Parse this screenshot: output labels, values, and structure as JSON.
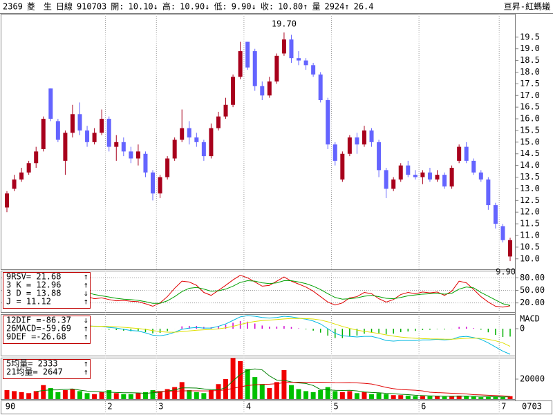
{
  "header": {
    "items": [
      {
        "text": "2369",
        "color": "#808080"
      },
      {
        "text": "菱　生",
        "color": "#c000c0"
      },
      {
        "text": "日線",
        "color": "#00a000"
      },
      {
        "text": "910703",
        "color": "#0000c0"
      },
      {
        "text": "開:",
        "color": "#c000c0"
      },
      {
        "text": "10.10",
        "color": "#c000c0"
      },
      {
        "text": "↓",
        "color": "#008000"
      },
      {
        "text": "高:",
        "color": "#c000c0"
      },
      {
        "text": "10.90",
        "color": "#c000c0"
      },
      {
        "text": "↓",
        "color": "#008000"
      },
      {
        "text": "低:",
        "color": "#c000c0"
      },
      {
        "text": "9.90",
        "color": "#c000c0"
      },
      {
        "text": "↓",
        "color": "#008000"
      },
      {
        "text": "收:",
        "color": "#c000c0"
      },
      {
        "text": "10.80",
        "color": "#c000c0"
      },
      {
        "text": "↑",
        "color": "#e00000"
      },
      {
        "text": "量",
        "color": "#c000c0"
      },
      {
        "text": "2924",
        "color": "#c00000"
      },
      {
        "text": "↑",
        "color": "#e00000"
      },
      {
        "text": "26.4",
        "color": "#00b0b0"
      }
    ],
    "right": {
      "text": "亘昇-紅螞蟻",
      "color": "#c00000"
    }
  },
  "chart_data": [
    {
      "type": "candlestick",
      "up_color": "#a8001c",
      "down_color": "#6464ff",
      "open": [
        12.2,
        13.0,
        13.4,
        13.7,
        14.1,
        14.7,
        17.3,
        15.9,
        14.2,
        15.4,
        16.2,
        15.5,
        15.0,
        15.4,
        16.0,
        14.8,
        15.0,
        14.6,
        14.3,
        14.5,
        13.7,
        12.8,
        13.5,
        14.3,
        15.1,
        15.6,
        15.2,
        15.0,
        14.4,
        15.6,
        16.1,
        16.6,
        17.8,
        19.3,
        18.9,
        17.4,
        17.0,
        17.6,
        18.8,
        19.4,
        18.6,
        18.5,
        18.3,
        17.9,
        16.8,
        14.9,
        13.4,
        14.5,
        15.2,
        14.9,
        15.5,
        15.0,
        13.8,
        13.0,
        13.4,
        14.0,
        13.6,
        13.5,
        13.7,
        13.4,
        13.6,
        13.1,
        14.2,
        14.8,
        14.2,
        13.7,
        13.4,
        12.3,
        11.4,
        10.1
      ],
      "high": [
        12.9,
        13.6,
        13.9,
        14.2,
        14.8,
        16.1,
        17.3,
        16.0,
        15.5,
        16.6,
        16.7,
        15.7,
        15.6,
        16.4,
        16.1,
        15.3,
        15.2,
        14.8,
        14.9,
        14.6,
        13.8,
        13.6,
        14.4,
        15.2,
        16.4,
        15.9,
        15.4,
        15.1,
        15.8,
        16.3,
        16.9,
        17.9,
        19.3,
        19.3,
        19.0,
        17.6,
        17.8,
        18.8,
        19.7,
        19.6,
        18.9,
        18.6,
        18.4,
        18.0,
        16.9,
        15.0,
        14.6,
        15.3,
        15.4,
        15.7,
        15.6,
        15.1,
        13.9,
        13.5,
        14.1,
        14.2,
        13.8,
        13.8,
        13.9,
        13.8,
        13.7,
        14.0,
        14.9,
        15.0,
        14.3,
        13.8,
        13.5,
        12.4,
        11.5,
        10.9
      ],
      "low": [
        12.0,
        12.9,
        13.3,
        13.6,
        13.9,
        14.6,
        15.9,
        15.0,
        13.6,
        15.2,
        15.3,
        14.8,
        14.9,
        15.3,
        14.6,
        14.2,
        14.4,
        14.1,
        14.0,
        13.5,
        12.5,
        12.6,
        13.4,
        14.2,
        15.0,
        14.9,
        14.8,
        14.2,
        14.3,
        15.5,
        16.0,
        16.5,
        17.7,
        18.1,
        17.2,
        16.8,
        16.9,
        17.5,
        18.7,
        18.4,
        18.3,
        18.1,
        17.8,
        16.7,
        14.7,
        14.0,
        13.3,
        14.4,
        14.5,
        14.8,
        14.8,
        13.5,
        12.6,
        12.9,
        13.3,
        13.5,
        13.4,
        13.2,
        13.3,
        13.3,
        13.0,
        13.0,
        14.1,
        14.1,
        13.6,
        13.3,
        12.1,
        11.3,
        10.7,
        9.9
      ],
      "close": [
        12.8,
        13.4,
        13.7,
        14.1,
        14.6,
        16.0,
        16.0,
        15.1,
        15.4,
        16.2,
        15.5,
        15.0,
        15.4,
        16.0,
        14.8,
        15.0,
        14.6,
        14.3,
        14.6,
        13.7,
        12.8,
        13.5,
        14.3,
        15.1,
        15.6,
        15.2,
        15.0,
        14.4,
        15.6,
        16.1,
        16.6,
        17.8,
        18.9,
        18.2,
        17.4,
        17.0,
        17.6,
        18.7,
        19.4,
        18.6,
        18.5,
        18.3,
        17.9,
        16.8,
        14.9,
        14.2,
        14.5,
        15.2,
        14.9,
        15.5,
        15.0,
        13.8,
        13.0,
        13.4,
        14.0,
        13.6,
        13.5,
        13.7,
        13.4,
        13.6,
        13.1,
        13.9,
        14.8,
        14.2,
        13.7,
        13.4,
        12.3,
        11.5,
        10.8,
        10.8
      ],
      "extremes": [
        {
          "value": 19.7,
          "label": "19.70"
        },
        {
          "value": 9.9,
          "label": "9.90"
        }
      ],
      "ylim": [
        9.55,
        20.5
      ],
      "yticks": [
        {
          "value": 10,
          "label": "10.0"
        },
        10.5,
        {
          "value": 11,
          "label": "11.0"
        },
        11.5,
        {
          "value": 12,
          "label": "12.0"
        },
        12.5,
        {
          "value": 13,
          "label": "13.0"
        },
        13.5,
        {
          "value": 14,
          "label": "14.0"
        },
        14.5,
        {
          "value": 15,
          "label": "15.0"
        },
        15.5,
        {
          "value": 16,
          "label": "16.0"
        },
        16.5,
        {
          "value": 17,
          "label": "17.0"
        },
        17.5,
        {
          "value": 18,
          "label": "18.0"
        },
        18.5,
        {
          "value": 19,
          "label": "19.0"
        },
        19.5
      ]
    },
    {
      "type": "line",
      "grid": true,
      "legend": [
        {
          "text": "9RSV= 21.68",
          "color": "#808080",
          "arrow": "↑",
          "arrow_color": "#e00000"
        },
        {
          "text": "3 K = 12.96",
          "color": "#e00000",
          "arrow": "↑",
          "arrow_color": "#e00000"
        },
        {
          "text": "3 D = 13.88",
          "color": "#00a000",
          "arrow": "↓",
          "arrow_color": "#008000"
        },
        {
          "text": "J = 11.12",
          "color": "#808080",
          "arrow": "↑",
          "arrow_color": "#e00000"
        }
      ],
      "series": [
        {
          "color": "#e00000",
          "values": [
            40,
            38,
            40,
            45,
            50,
            60,
            62,
            50,
            45,
            50,
            48,
            35,
            30,
            32,
            28,
            25,
            26,
            24,
            23,
            18,
            12,
            20,
            35,
            55,
            72,
            70,
            62,
            45,
            38,
            50,
            62,
            75,
            86,
            80,
            70,
            60,
            62,
            72,
            82,
            72,
            65,
            58,
            48,
            35,
            22,
            15,
            20,
            32,
            35,
            45,
            42,
            30,
            22,
            28,
            40,
            45,
            42,
            46,
            44,
            46,
            38,
            48,
            72,
            68,
            52,
            35,
            22,
            12,
            10,
            12.96
          ]
        },
        {
          "color": "#00a000",
          "values": [
            45,
            43,
            42,
            43,
            45,
            50,
            54,
            53,
            50,
            50,
            49,
            45,
            40,
            37,
            34,
            31,
            29,
            28,
            26,
            23,
            19,
            19,
            25,
            35,
            47,
            55,
            57,
            53,
            48,
            49,
            53,
            60,
            69,
            73,
            72,
            68,
            66,
            68,
            73,
            73,
            70,
            66,
            60,
            52,
            42,
            33,
            29,
            30,
            32,
            36,
            38,
            35,
            31,
            30,
            33,
            37,
            39,
            41,
            42,
            43,
            41,
            43,
            53,
            58,
            56,
            45,
            36,
            27,
            18,
            13.88
          ]
        }
      ],
      "ylim": [
        -2,
        97
      ],
      "yticks": [
        {
          "value": 80,
          "label": "80.00"
        },
        {
          "value": 50,
          "label": "50.00"
        },
        {
          "value": 20,
          "label": "20.00"
        }
      ]
    },
    {
      "type": "combo",
      "axis_title": "MACD",
      "axis_title_color": "#00b8e0",
      "legend": [
        {
          "text": "12DIF =-86.37",
          "color": "#00b8e0",
          "arrow": "↓",
          "arrow_color": "#008000"
        },
        {
          "text": "26MACD=-59.69",
          "color": "#d8d800",
          "arrow": "↑",
          "arrow_color": "#e00000"
        },
        {
          "text": "9DEF =-26.68",
          "color": "#c000c0",
          "arrow": "↑",
          "arrow_color": "#e00000"
        }
      ],
      "series": [
        {
          "color": "#00b8e0",
          "values": [
            -10,
            -8,
            -5,
            -2,
            2,
            10,
            14,
            12,
            12,
            15,
            14,
            10,
            8,
            8,
            4,
            2,
            -2,
            -6,
            -8,
            -14,
            -22,
            -24,
            -20,
            -12,
            -2,
            2,
            4,
            2,
            2,
            8,
            16,
            28,
            40,
            44,
            42,
            38,
            36,
            38,
            42,
            40,
            36,
            32,
            26,
            16,
            0,
            -16,
            -24,
            -26,
            -28,
            -26,
            -26,
            -32,
            -40,
            -42,
            -40,
            -40,
            -40,
            -38,
            -38,
            -36,
            -38,
            -36,
            -28,
            -26,
            -30,
            -36,
            -48,
            -62,
            -76,
            -86.37
          ]
        },
        {
          "color": "#e0e000",
          "values": [
            -12,
            -11.2,
            -10,
            -8.4,
            -6.3,
            -3,
            0.4,
            2.7,
            4.6,
            6.7,
            8.2,
            8.5,
            8.4,
            8.3,
            7.5,
            6.4,
            4.7,
            2.6,
            0.5,
            -2.4,
            -6.3,
            -9.8,
            -11.8,
            -11.9,
            -9.9,
            -7.5,
            -5.2,
            -3.8,
            -2.6,
            -0.5,
            2.8,
            7.8,
            14.3,
            20.2,
            24.6,
            27.3,
            29,
            30.8,
            33,
            34.4,
            34.7,
            34.2,
            32.6,
            29.3,
            23.4,
            15.6,
            7.7,
            1,
            -4.8,
            -9,
            -12.4,
            -16.3,
            -21,
            -25.2,
            -28.2,
            -30.5,
            -32.4,
            -33.5,
            -34.4,
            -34.7,
            -35.4,
            -35.5,
            -34,
            -32.4,
            -31.9,
            -32.7,
            -35.8,
            -41,
            -48,
            -59.69
          ]
        }
      ],
      "bars": {
        "pos_color": "#d000d0",
        "neg_color": "#00b000",
        "values": [
          2,
          3.2,
          5,
          6.4,
          8.3,
          13,
          13.6,
          9.3,
          7.4,
          8.3,
          5.8,
          1.5,
          -0.4,
          -0.3,
          -3.5,
          -4.4,
          -6.7,
          -8.6,
          -8.5,
          -11.6,
          -15.7,
          -14.2,
          -8.2,
          -0.1,
          7.9,
          9.5,
          9.2,
          5.8,
          4.6,
          8.5,
          13.2,
          20.2,
          25.7,
          23.8,
          17.4,
          10.7,
          7,
          7.2,
          9,
          5.6,
          1.3,
          -2.2,
          -6.6,
          -13.3,
          -23.4,
          -31.6,
          -31.7,
          -27,
          -23.2,
          -17,
          -13.6,
          -15.7,
          -19,
          -16.8,
          -11.8,
          -9.5,
          -7.6,
          -4.5,
          -3.6,
          -1.3,
          -2.6,
          -0.5,
          6,
          6.4,
          1.9,
          -3.3,
          -12.2,
          -21,
          -28,
          -26.68
        ]
      },
      "ylim": [
        -91,
        49
      ],
      "yticks": [
        0
      ]
    },
    {
      "type": "bar",
      "up_color": "#f00000",
      "down_color": "#00c000",
      "categories": [
        "90",
        null,
        null,
        null,
        null,
        null,
        null,
        null,
        null,
        null,
        null,
        null,
        null,
        null,
        "2",
        null,
        null,
        null,
        null,
        null,
        null,
        "3",
        null,
        null,
        null,
        null,
        null,
        null,
        null,
        null,
        null,
        null,
        null,
        "4",
        null,
        null,
        null,
        null,
        null,
        null,
        null,
        null,
        null,
        null,
        null,
        "5",
        null,
        null,
        null,
        null,
        null,
        null,
        null,
        null,
        null,
        null,
        null,
        "6",
        null,
        null,
        null,
        null,
        null,
        null,
        null,
        null,
        null,
        null,
        "7",
        null
      ],
      "end_label": "0703",
      "end_label_color": "#0000c0",
      "legend": [
        {
          "text": "5均量=   2333",
          "color": "#c00000",
          "arrow": "↑",
          "arrow_color": "#e00000"
        },
        {
          "text": "21均量=   2647",
          "color": "#c00000",
          "arrow": "↑",
          "arrow_color": "#e00000"
        }
      ],
      "values": [
        9000,
        8000,
        7000,
        6000,
        8000,
        14000,
        11000,
        7000,
        9000,
        10000,
        8000,
        6000,
        5000,
        7000,
        9000,
        6000,
        5000,
        5000,
        6000,
        7000,
        9000,
        8000,
        10000,
        12000,
        17000,
        9000,
        7000,
        6000,
        9000,
        15000,
        20000,
        41000,
        38000,
        30000,
        22000,
        15000,
        11000,
        17000,
        29000,
        14000,
        10000,
        8000,
        7000,
        9000,
        12000,
        8000,
        7000,
        8000,
        6000,
        7000,
        5000,
        6000,
        5000,
        4000,
        4000,
        3500,
        3000,
        3000,
        2800,
        3000,
        2500,
        3000,
        3500,
        3000,
        2500,
        2000,
        2200,
        2300,
        2000,
        2924
      ],
      "series": [
        {
          "color": "#008000",
          "values": [
            null,
            null,
            null,
            null,
            7600,
            8600,
            9200,
            9200,
            9800,
            10200,
            9000,
            8000,
            7600,
            7200,
            7000,
            6600,
            6400,
            6400,
            6200,
            5800,
            6400,
            7000,
            8000,
            9200,
            11200,
            11200,
            11000,
            10200,
            9600,
            9200,
            11400,
            18200,
            24600,
            28800,
            30200,
            29200,
            23200,
            19000,
            18800,
            17200,
            16200,
            15600,
            13600,
            9600,
            9200,
            8800,
            8600,
            8800,
            8200,
            7200,
            6600,
            6400,
            5800,
            5400,
            4800,
            4500,
            3900,
            3500,
            3260,
            3060,
            2860,
            2860,
            2960,
            3000,
            2900,
            2800,
            2640,
            2400,
            2200,
            2333
          ]
        },
        {
          "color": "#e00000",
          "values": [
            null,
            null,
            null,
            null,
            null,
            null,
            null,
            null,
            null,
            null,
            null,
            null,
            null,
            null,
            null,
            null,
            null,
            null,
            null,
            null,
            7600,
            7600,
            7700,
            7900,
            8300,
            8300,
            8300,
            8200,
            8300,
            8600,
            9200,
            10800,
            12300,
            13500,
            14300,
            14700,
            14900,
            15400,
            16500,
            16800,
            16900,
            16900,
            16800,
            16900,
            16800,
            16400,
            16300,
            16400,
            16200,
            15800,
            15100,
            13500,
            11700,
            10400,
            9600,
            9200,
            8900,
            8200,
            6900,
            6500,
            6200,
            5900,
            5600,
            5200,
            4500,
            4200,
            3900,
            3600,
            3300,
            2647
          ]
        }
      ],
      "ylim": [
        0,
        41400
      ],
      "yticks": [
        20000
      ]
    }
  ]
}
